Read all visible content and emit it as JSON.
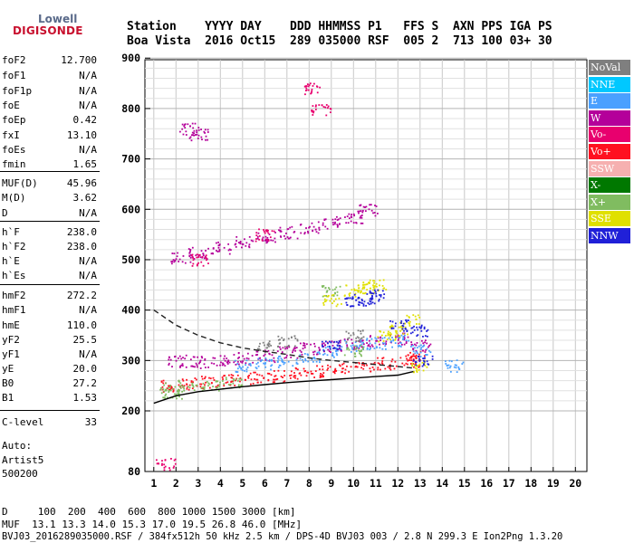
{
  "logo": {
    "line1": "Lowell",
    "line2": "DIGISONDE"
  },
  "header": {
    "line1": "Station    YYYY DAY    DDD HHMMSS P1   FFS S  AXN PPS IGA PS",
    "line2": "Boa Vista  2016 Oct15  289 035000 RSF  005 2  713 100 03+ 30"
  },
  "params": [
    {
      "name": "foF2",
      "value": "12.700"
    },
    {
      "name": "foF1",
      "value": "N/A"
    },
    {
      "name": "foF1p",
      "value": "N/A"
    },
    {
      "name": "foE",
      "value": "N/A"
    },
    {
      "name": "foEp",
      "value": "0.42"
    },
    {
      "name": "fxI",
      "value": "13.10"
    },
    {
      "name": "foEs",
      "value": "N/A"
    },
    {
      "name": "fmin",
      "value": "1.65"
    },
    {
      "name": "MUF(D)",
      "value": "45.96"
    },
    {
      "name": "M(D)",
      "value": "3.62"
    },
    {
      "name": "D",
      "value": "N/A"
    },
    {
      "name": "h`F",
      "value": "238.0"
    },
    {
      "name": "h`F2",
      "value": "238.0"
    },
    {
      "name": "h`E",
      "value": "N/A"
    },
    {
      "name": "h`Es",
      "value": "N/A"
    },
    {
      "name": "hmF2",
      "value": "272.2"
    },
    {
      "name": "hmF1",
      "value": "N/A"
    },
    {
      "name": "hmE",
      "value": "110.0"
    },
    {
      "name": "yF2",
      "value": "25.5"
    },
    {
      "name": "yF1",
      "value": "N/A"
    },
    {
      "name": "yE",
      "value": "20.0"
    },
    {
      "name": "B0",
      "value": "27.2"
    },
    {
      "name": "B1",
      "value": "1.53"
    },
    {
      "name": "C-level",
      "value": "33"
    }
  ],
  "auto": {
    "line1": "Auto:",
    "line2": "Artist5",
    "line3": "500200"
  },
  "legend": [
    {
      "label": "NoVal",
      "color": "#7f7f7f"
    },
    {
      "label": "NNE",
      "color": "#00c8ff"
    },
    {
      "label": "E",
      "color": "#4aa0ff"
    },
    {
      "label": "W",
      "color": "#b4009a"
    },
    {
      "label": "Vo-",
      "color": "#e8006e"
    },
    {
      "label": "Vo+",
      "color": "#ff1020"
    },
    {
      "label": "SSW",
      "color": "#f6b0b0"
    },
    {
      "label": "X-",
      "color": "#007800"
    },
    {
      "label": "X+",
      "color": "#80bc60"
    },
    {
      "label": "SSE",
      "color": "#e0e000"
    },
    {
      "label": "NNW",
      "color": "#2020d8"
    }
  ],
  "footer": {
    "line1": "D     100  200  400  600  800 1000 1500 3000 [km]",
    "line2": "MUF  13.1 13.3 14.0 15.3 17.0 19.5 26.8 46.0 [MHz]",
    "line3": "BVJ03_2016289035000.RSF / 384fx512h 50 kHz 2.5 km / DPS-4D BVJ03 003 / 2.8 N 299.3 E Ion2Png 1.3.20"
  },
  "chart_data": {
    "type": "scatter",
    "xlim": [
      1,
      20
    ],
    "ylim": [
      80,
      900
    ],
    "xticks": [
      1,
      2,
      3,
      4,
      5,
      6,
      7,
      8,
      9,
      10,
      11,
      12,
      13,
      14,
      15,
      16,
      17,
      18,
      19,
      20
    ],
    "yticks": [
      80,
      200,
      300,
      400,
      500,
      600,
      700,
      800,
      900
    ],
    "grid": true,
    "legend_position": "right",
    "series": [
      {
        "name": "Vo+",
        "color": "#ff1020",
        "points": [
          [
            1.7,
            250
          ],
          [
            2.5,
            255
          ],
          [
            3.5,
            258
          ],
          [
            4.5,
            262
          ],
          [
            5.5,
            266
          ],
          [
            6.5,
            270
          ],
          [
            7.5,
            275
          ],
          [
            8.5,
            280
          ],
          [
            9.5,
            285
          ],
          [
            10.5,
            290
          ],
          [
            11.5,
            295
          ],
          [
            12.5,
            300
          ],
          [
            12.8,
            310
          ]
        ]
      },
      {
        "name": "W",
        "color": "#b4009a",
        "points": [
          [
            2,
            300
          ],
          [
            3,
            298
          ],
          [
            4,
            300
          ],
          [
            5,
            305
          ],
          [
            6,
            310
          ],
          [
            7,
            318
          ],
          [
            8,
            325
          ],
          [
            9,
            330
          ],
          [
            10,
            335
          ],
          [
            11,
            340
          ],
          [
            12,
            345
          ],
          [
            13,
            330
          ],
          [
            2.2,
            505
          ],
          [
            3,
            515
          ],
          [
            4,
            525
          ],
          [
            5,
            535
          ],
          [
            6,
            545
          ],
          [
            7,
            555
          ],
          [
            8,
            565
          ],
          [
            9,
            575
          ],
          [
            10,
            585
          ],
          [
            10.6,
            600
          ],
          [
            2.6,
            760
          ],
          [
            3,
            750
          ]
        ]
      },
      {
        "name": "E",
        "color": "#4aa0ff",
        "points": [
          [
            5,
            290
          ],
          [
            6,
            295
          ],
          [
            7,
            300
          ],
          [
            8,
            310
          ],
          [
            9,
            320
          ],
          [
            10,
            330
          ],
          [
            11,
            335
          ],
          [
            12,
            340
          ],
          [
            13,
            320
          ],
          [
            14.5,
            290
          ]
        ]
      },
      {
        "name": "SSE",
        "color": "#e0e000",
        "points": [
          [
            9,
            420
          ],
          [
            10,
            440
          ],
          [
            10.5,
            445
          ],
          [
            11,
            450
          ],
          [
            11.5,
            350
          ],
          [
            12,
            360
          ],
          [
            12.5,
            380
          ],
          [
            13,
            290
          ]
        ]
      },
      {
        "name": "NNW",
        "color": "#2020d8",
        "points": [
          [
            9,
            330
          ],
          [
            10,
            420
          ],
          [
            10.5,
            420
          ],
          [
            11,
            430
          ],
          [
            12,
            370
          ],
          [
            13,
            360
          ],
          [
            13.1,
            300
          ]
        ]
      },
      {
        "name": "X+",
        "color": "#80bc60",
        "points": [
          [
            1.7,
            245
          ],
          [
            2.5,
            250
          ],
          [
            3.5,
            253
          ],
          [
            4.5,
            257
          ],
          [
            9,
            440
          ],
          [
            10,
            320
          ],
          [
            1.8,
            235
          ]
        ]
      },
      {
        "name": "Vo-",
        "color": "#e8006e",
        "points": [
          [
            8.2,
            840
          ],
          [
            8.5,
            800
          ],
          [
            1.5,
            95
          ],
          [
            3,
            500
          ],
          [
            6,
            550
          ]
        ]
      },
      {
        "name": "NoVal",
        "color": "#7f7f7f",
        "points": [
          [
            6,
            330
          ],
          [
            7,
            340
          ],
          [
            10,
            350
          ]
        ]
      }
    ],
    "curves": [
      {
        "name": "profile",
        "style": "solid",
        "points": [
          [
            1,
            215
          ],
          [
            2,
            230
          ],
          [
            3,
            238
          ],
          [
            4,
            243
          ],
          [
            5,
            248
          ],
          [
            6,
            252
          ],
          [
            7,
            256
          ],
          [
            8,
            259
          ],
          [
            9,
            262
          ],
          [
            10,
            265
          ],
          [
            11,
            268
          ],
          [
            12,
            271
          ],
          [
            12.7,
            278
          ]
        ]
      },
      {
        "name": "upper",
        "style": "dashed",
        "points": [
          [
            1,
            400
          ],
          [
            2,
            370
          ],
          [
            3,
            350
          ],
          [
            4,
            335
          ],
          [
            5,
            325
          ],
          [
            6,
            318
          ],
          [
            7,
            312
          ],
          [
            8,
            305
          ],
          [
            9,
            300
          ],
          [
            10,
            296
          ],
          [
            11,
            292
          ],
          [
            12,
            288
          ],
          [
            12.7,
            285
          ]
        ]
      }
    ]
  }
}
